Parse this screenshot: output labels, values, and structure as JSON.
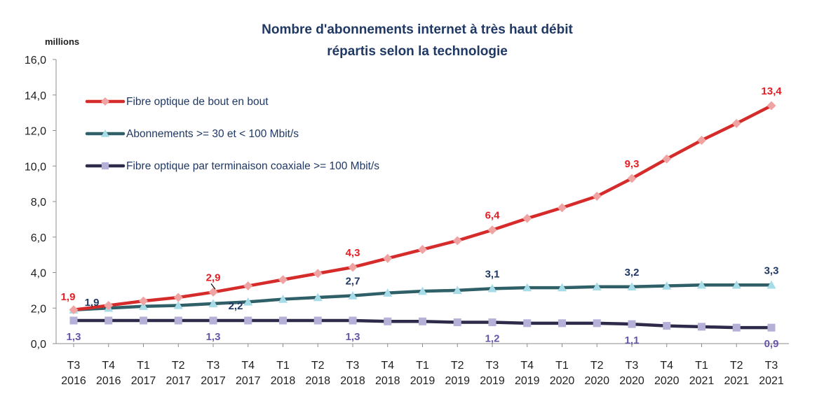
{
  "chart_data": {
    "type": "line",
    "title": [
      "Nombre d'abonnements internet à très haut débit",
      "répartis selon la technologie"
    ],
    "ylabel": "millions",
    "ylim": [
      0,
      16
    ],
    "yticks": [
      "0,0",
      "2,0",
      "4,0",
      "6,0",
      "8,0",
      "10,0",
      "12,0",
      "14,0",
      "16,0"
    ],
    "categories": [
      [
        "T3",
        "2016"
      ],
      [
        "T4",
        "2016"
      ],
      [
        "T1",
        "2017"
      ],
      [
        "T2",
        "2017"
      ],
      [
        "T3",
        "2017"
      ],
      [
        "T4",
        "2017"
      ],
      [
        "T1",
        "2018"
      ],
      [
        "T2",
        "2018"
      ],
      [
        "T3",
        "2018"
      ],
      [
        "T4",
        "2018"
      ],
      [
        "T1",
        "2019"
      ],
      [
        "T2",
        "2019"
      ],
      [
        "T3",
        "2019"
      ],
      [
        "T4",
        "2019"
      ],
      [
        "T1",
        "2020"
      ],
      [
        "T2",
        "2020"
      ],
      [
        "T3",
        "2020"
      ],
      [
        "T4",
        "2020"
      ],
      [
        "T1",
        "2021"
      ],
      [
        "T2",
        "2021"
      ],
      [
        "T3",
        "2021"
      ]
    ],
    "grid": false,
    "legend_position": "top-left",
    "series": [
      {
        "name": "Fibre optique de bout en bout",
        "color": "#d62b2b",
        "marker": "diamond",
        "marker_color": "#f0a3a3",
        "label_color": "#e31e24",
        "values": [
          1.9,
          2.15,
          2.4,
          2.6,
          2.9,
          3.25,
          3.6,
          3.95,
          4.3,
          4.8,
          5.3,
          5.8,
          6.4,
          7.05,
          7.65,
          8.3,
          9.3,
          10.4,
          11.45,
          12.4,
          13.4
        ],
        "labels": [
          {
            "index": 0,
            "text": "1,9"
          },
          {
            "index": 4,
            "text": "2,9"
          },
          {
            "index": 8,
            "text": "4,3"
          },
          {
            "index": 12,
            "text": "6,4"
          },
          {
            "index": 16,
            "text": "9,3"
          },
          {
            "index": 20,
            "text": "13,4"
          }
        ]
      },
      {
        "name": "Abonnements >= 30 et < 100 Mbit/s",
        "color": "#2f6068",
        "marker": "triangle",
        "marker_color": "#a6dbe8",
        "label_color": "#1f3864",
        "values": [
          1.9,
          2.0,
          2.1,
          2.15,
          2.25,
          2.35,
          2.5,
          2.6,
          2.7,
          2.85,
          2.95,
          3.0,
          3.1,
          3.15,
          3.15,
          3.2,
          3.2,
          3.25,
          3.3,
          3.3,
          3.3
        ],
        "labels": [
          {
            "index": 0,
            "text": "1,9"
          },
          {
            "index": 4,
            "text": "2,2"
          },
          {
            "index": 8,
            "text": "2,7"
          },
          {
            "index": 12,
            "text": "3,1"
          },
          {
            "index": 16,
            "text": "3,2"
          },
          {
            "index": 20,
            "text": "3,3"
          }
        ]
      },
      {
        "name": "Fibre optique par terminaison coaxiale >= 100 Mbit/s",
        "color": "#2d2a4a",
        "marker": "square",
        "marker_color": "#b4b0d8",
        "label_color": "#6655a8",
        "values": [
          1.3,
          1.3,
          1.3,
          1.3,
          1.3,
          1.3,
          1.3,
          1.3,
          1.3,
          1.25,
          1.25,
          1.2,
          1.2,
          1.15,
          1.15,
          1.15,
          1.1,
          1.0,
          0.95,
          0.9,
          0.9
        ],
        "labels": [
          {
            "index": 0,
            "text": "1,3"
          },
          {
            "index": 4,
            "text": "1,3"
          },
          {
            "index": 8,
            "text": "1,3"
          },
          {
            "index": 12,
            "text": "1,2"
          },
          {
            "index": 16,
            "text": "1,1"
          },
          {
            "index": 20,
            "text": "0,9"
          }
        ]
      }
    ]
  }
}
